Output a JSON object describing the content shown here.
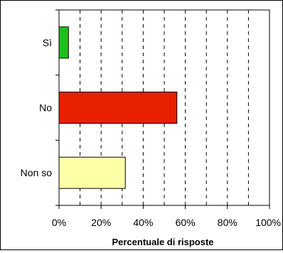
{
  "chart_data": {
    "type": "bar",
    "orientation": "horizontal",
    "categories": [
      "Sì",
      "No",
      "Non so"
    ],
    "values": [
      4.5,
      56,
      31.5
    ],
    "colors": [
      "#1fbf1f",
      "#e82000",
      "#ffffa8"
    ],
    "xlabel": "Percentuale di risposte",
    "ylabel": "",
    "xlim": [
      0,
      100
    ],
    "ticks": [
      "0%",
      "20%",
      "40%",
      "60%",
      "80%",
      "100%"
    ],
    "tick_values": [
      0,
      20,
      40,
      60,
      80,
      100
    ],
    "grid": "vertical dashed every 10%",
    "legend": "none"
  }
}
